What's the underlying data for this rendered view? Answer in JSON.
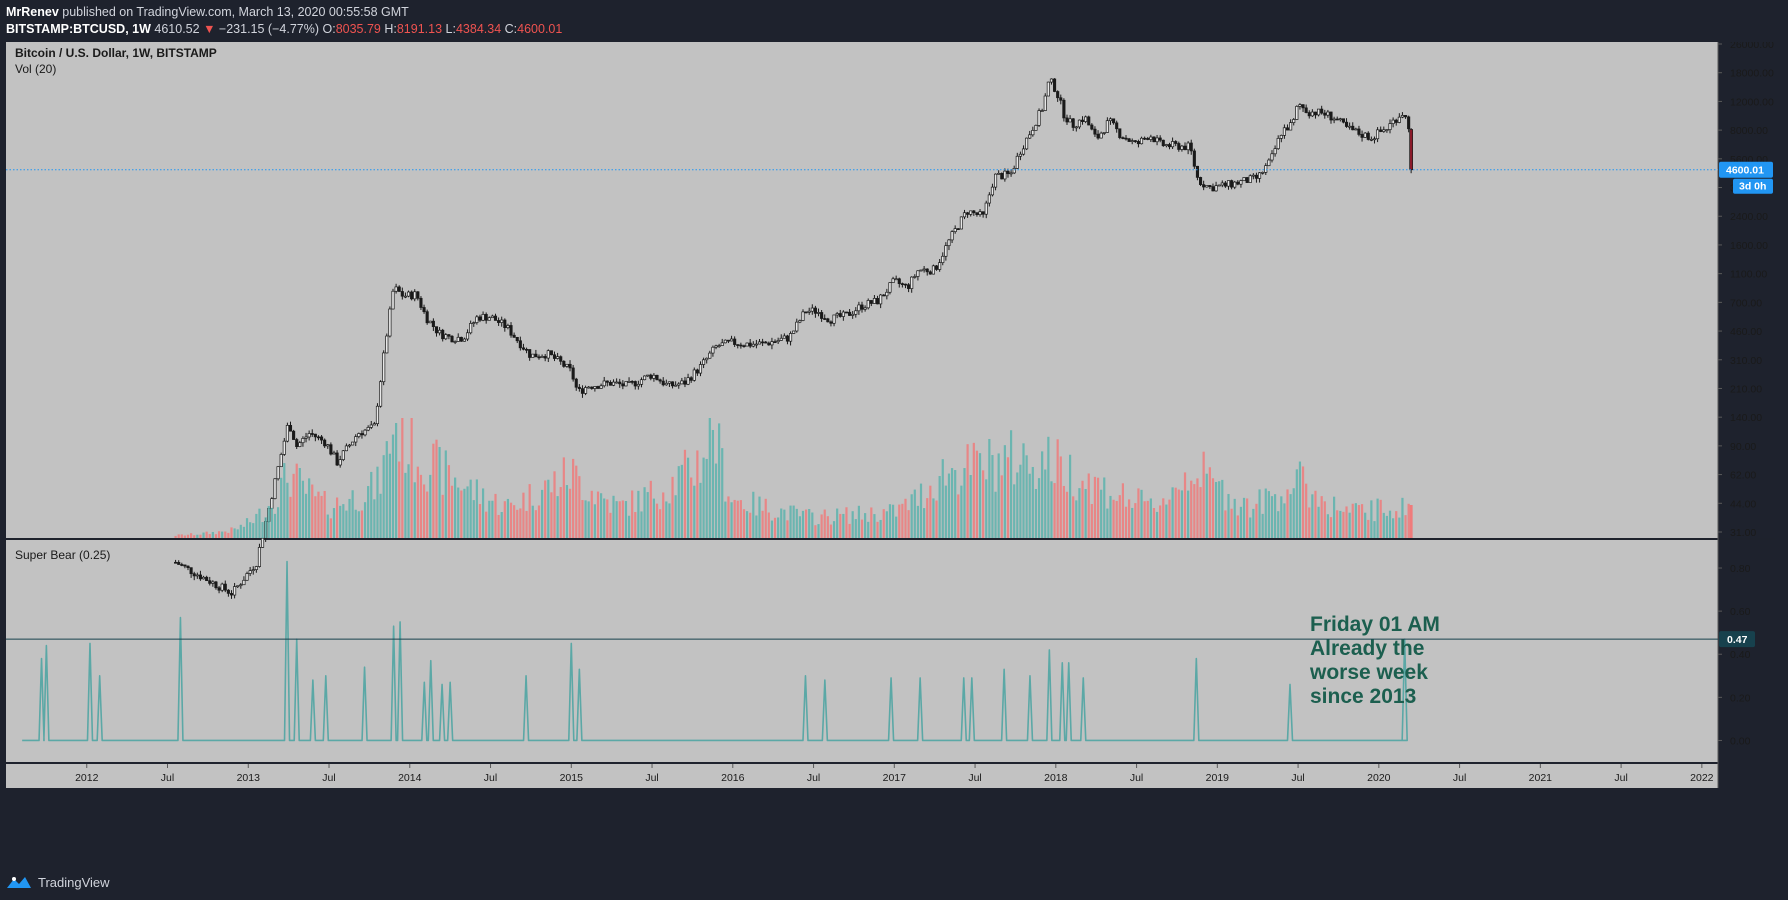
{
  "header": {
    "author": "MrRenev",
    "published": "published on TradingView.com, March 13, 2020 00:55:58 GMT",
    "symbol": "BITSTAMP:BTCUSD, 1W",
    "last": "4610.52",
    "change_arrow": "▼",
    "change": "−231.15 (−4.77%)",
    "o_label": "O:",
    "o_value": "8035.79",
    "h_label": "H:",
    "h_value": "8191.13",
    "l_label": "L:",
    "l_value": "4384.34",
    "c_label": "C:",
    "c_value": "4600.01"
  },
  "footer": {
    "brand": "TradingView",
    "logo_icon": "tradingview-logo-icon"
  },
  "colors": {
    "panel_bg": "#c2c2c2",
    "frame_bg": "#1e222d",
    "price_line": "#2196f3",
    "up_volume": "#5cb3ad",
    "down_volume": "#ef7b7b",
    "candle": "#1a1a1a",
    "indicator_line": "#5ba8a6",
    "annotation": "#1c5f4f",
    "badge_blue": "#2196f3",
    "badge_dark": "#17414d"
  },
  "chart_data": [
    {
      "type": "candlestick",
      "title": "Bitcoin / U.S. Dollar, 1W, BITSTAMP",
      "scale": "log",
      "ylim": [
        28,
        27000
      ],
      "y_ticks": [
        "26000.00",
        "18000.00",
        "12000.00",
        "8000.00",
        "5600.00",
        "3900.00",
        "2400.00",
        "1600.00",
        "1100.00",
        "700.00",
        "460.00",
        "310.00",
        "210.00",
        "140.00",
        "90.00",
        "62.00",
        "44.00",
        "31.00"
      ],
      "x_range": [
        "2011-08",
        "2022-01"
      ],
      "x_ticks": [
        {
          "label": "2012",
          "x": 2012.0
        },
        {
          "label": "Jul",
          "x": 2012.5
        },
        {
          "label": "2013",
          "x": 2013.0
        },
        {
          "label": "Jul",
          "x": 2013.5
        },
        {
          "label": "2014",
          "x": 2014.0
        },
        {
          "label": "Jul",
          "x": 2014.5
        },
        {
          "label": "2015",
          "x": 2015.0
        },
        {
          "label": "Jul",
          "x": 2015.5
        },
        {
          "label": "2016",
          "x": 2016.0
        },
        {
          "label": "Jul",
          "x": 2016.5
        },
        {
          "label": "2017",
          "x": 2017.0
        },
        {
          "label": "Jul",
          "x": 2017.5
        },
        {
          "label": "2018",
          "x": 2018.0
        },
        {
          "label": "Jul",
          "x": 2018.5
        },
        {
          "label": "2019",
          "x": 2019.0
        },
        {
          "label": "Jul",
          "x": 2019.5
        },
        {
          "label": "2020",
          "x": 2020.0
        },
        {
          "label": "Jul",
          "x": 2020.5
        },
        {
          "label": "2021",
          "x": 2021.0
        },
        {
          "label": "Jul",
          "x": 2021.5
        },
        {
          "label": "2022",
          "x": 2022.0
        }
      ],
      "price_key_points": [
        [
          2012.55,
          20
        ],
        [
          2012.9,
          13
        ],
        [
          2013.05,
          20
        ],
        [
          2013.25,
          140
        ],
        [
          2013.3,
          100
        ],
        [
          2013.38,
          120
        ],
        [
          2013.48,
          105
        ],
        [
          2013.55,
          80
        ],
        [
          2013.68,
          120
        ],
        [
          2013.78,
          130
        ],
        [
          2013.85,
          420
        ],
        [
          2013.9,
          900
        ],
        [
          2013.96,
          800
        ],
        [
          2014.04,
          820
        ],
        [
          2014.1,
          600
        ],
        [
          2014.18,
          480
        ],
        [
          2014.25,
          450
        ],
        [
          2014.33,
          450
        ],
        [
          2014.42,
          600
        ],
        [
          2014.5,
          600
        ],
        [
          2014.6,
          520
        ],
        [
          2014.68,
          420
        ],
        [
          2014.75,
          350
        ],
        [
          2014.85,
          360
        ],
        [
          2014.93,
          320
        ],
        [
          2015.0,
          280
        ],
        [
          2015.04,
          210
        ],
        [
          2015.1,
          230
        ],
        [
          2015.25,
          240
        ],
        [
          2015.35,
          230
        ],
        [
          2015.5,
          270
        ],
        [
          2015.6,
          230
        ],
        [
          2015.7,
          240
        ],
        [
          2015.8,
          300
        ],
        [
          2015.9,
          400
        ],
        [
          2016.0,
          420
        ],
        [
          2016.1,
          410
        ],
        [
          2016.2,
          415
        ],
        [
          2016.35,
          450
        ],
        [
          2016.45,
          650
        ],
        [
          2016.52,
          650
        ],
        [
          2016.6,
          580
        ],
        [
          2016.7,
          610
        ],
        [
          2016.8,
          700
        ],
        [
          2016.9,
          750
        ],
        [
          2017.0,
          980
        ],
        [
          2017.08,
          900
        ],
        [
          2017.15,
          1150
        ],
        [
          2017.25,
          1150
        ],
        [
          2017.35,
          1800
        ],
        [
          2017.45,
          2600
        ],
        [
          2017.55,
          2400
        ],
        [
          2017.62,
          4200
        ],
        [
          2017.72,
          4300
        ],
        [
          2017.78,
          6000
        ],
        [
          2017.85,
          8000
        ],
        [
          2017.92,
          11000
        ],
        [
          2017.96,
          16000
        ],
        [
          2018.0,
          14000
        ],
        [
          2018.05,
          10000
        ],
        [
          2018.1,
          8500
        ],
        [
          2018.18,
          9500
        ],
        [
          2018.25,
          7000
        ],
        [
          2018.33,
          9000
        ],
        [
          2018.4,
          7500
        ],
        [
          2018.5,
          6500
        ],
        [
          2018.58,
          7500
        ],
        [
          2018.65,
          6500
        ],
        [
          2018.75,
          6400
        ],
        [
          2018.83,
          6300
        ],
        [
          2018.88,
          4000
        ],
        [
          2018.95,
          3600
        ],
        [
          2019.05,
          3700
        ],
        [
          2019.15,
          3900
        ],
        [
          2019.25,
          4100
        ],
        [
          2019.33,
          5200
        ],
        [
          2019.4,
          7900
        ],
        [
          2019.47,
          8700
        ],
        [
          2019.5,
          11500
        ],
        [
          2019.56,
          10300
        ],
        [
          2019.65,
          10100
        ],
        [
          2019.72,
          9500
        ],
        [
          2019.8,
          8200
        ],
        [
          2019.88,
          7600
        ],
        [
          2019.95,
          7200
        ],
        [
          2020.05,
          8200
        ],
        [
          2020.12,
          9700
        ],
        [
          2020.15,
          10200
        ],
        [
          2020.18,
          8700
        ],
        [
          2020.2,
          8035
        ]
      ],
      "last_candle": {
        "open": 8035.79,
        "high": 8191.13,
        "low": 4384.34,
        "close": 4600.01
      },
      "last_price_label": "4600.01",
      "countdown_label": "3d 0h"
    },
    {
      "type": "bar",
      "title": "Vol (20)",
      "volume_key_points": [
        [
          2012.55,
          0.01
        ],
        [
          2012.9,
          0.03
        ],
        [
          2013.05,
          0.08
        ],
        [
          2013.25,
          0.25
        ],
        [
          2013.5,
          0.12
        ],
        [
          2013.8,
          0.2
        ],
        [
          2013.9,
          0.45
        ],
        [
          2014.0,
          0.35
        ],
        [
          2014.3,
          0.22
        ],
        [
          2014.6,
          0.12
        ],
        [
          2014.8,
          0.18
        ],
        [
          2015.0,
          0.25
        ],
        [
          2015.3,
          0.12
        ],
        [
          2015.6,
          0.2
        ],
        [
          2015.8,
          0.3
        ],
        [
          2015.88,
          0.45
        ],
        [
          2016.0,
          0.15
        ],
        [
          2016.5,
          0.08
        ],
        [
          2017.0,
          0.1
        ],
        [
          2017.3,
          0.25
        ],
        [
          2017.7,
          0.3
        ],
        [
          2017.95,
          0.3
        ],
        [
          2018.2,
          0.22
        ],
        [
          2018.6,
          0.12
        ],
        [
          2018.85,
          0.28
        ],
        [
          2019.2,
          0.12
        ],
        [
          2019.5,
          0.22
        ],
        [
          2019.8,
          0.1
        ],
        [
          2020.2,
          0.12
        ]
      ]
    },
    {
      "type": "line",
      "title": "Super Bear (0.25)",
      "ylim": [
        -0.1,
        0.93
      ],
      "y_ticks": [
        "0.80",
        "0.60",
        "0.40",
        "0.20",
        "0.00"
      ],
      "current_value_label": "0.47",
      "spikes": [
        [
          2011.72,
          0.38
        ],
        [
          2011.75,
          0.44
        ],
        [
          2012.02,
          0.45
        ],
        [
          2012.08,
          0.3
        ],
        [
          2012.58,
          0.57
        ],
        [
          2013.24,
          0.83
        ],
        [
          2013.3,
          0.47
        ],
        [
          2013.4,
          0.28
        ],
        [
          2013.48,
          0.3
        ],
        [
          2013.72,
          0.34
        ],
        [
          2013.9,
          0.53
        ],
        [
          2013.94,
          0.55
        ],
        [
          2014.09,
          0.27
        ],
        [
          2014.13,
          0.37
        ],
        [
          2014.2,
          0.26
        ],
        [
          2014.25,
          0.27
        ],
        [
          2014.72,
          0.3
        ],
        [
          2015.0,
          0.45
        ],
        [
          2015.05,
          0.33
        ],
        [
          2016.45,
          0.3
        ],
        [
          2016.57,
          0.28
        ],
        [
          2016.98,
          0.29
        ],
        [
          2017.16,
          0.29
        ],
        [
          2017.43,
          0.29
        ],
        [
          2017.48,
          0.29
        ],
        [
          2017.68,
          0.33
        ],
        [
          2017.84,
          0.3
        ],
        [
          2017.96,
          0.42
        ],
        [
          2018.04,
          0.36
        ],
        [
          2018.08,
          0.36
        ],
        [
          2018.17,
          0.29
        ],
        [
          2018.87,
          0.38
        ],
        [
          2019.45,
          0.26
        ],
        [
          2020.16,
          0.47
        ]
      ],
      "annotation": [
        "Friday 01 AM",
        "Already the",
        "worse week",
        "since 2013"
      ]
    }
  ]
}
